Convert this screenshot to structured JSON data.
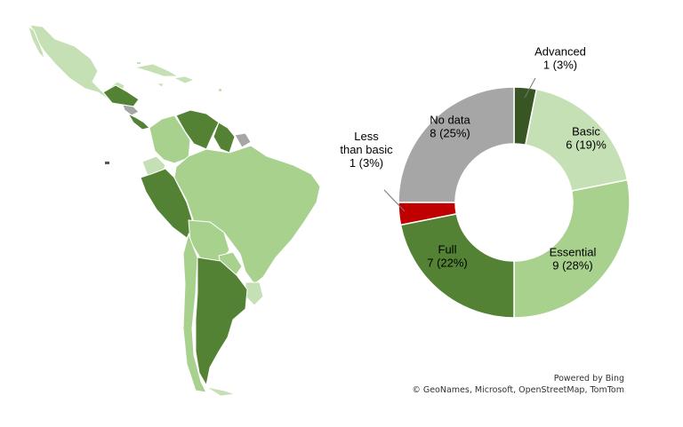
{
  "chart_data": {
    "type": "pie",
    "variant": "donut",
    "categories": [
      "Advanced",
      "Basic",
      "Essential",
      "Full",
      "Less than basic",
      "No data"
    ],
    "values": [
      1,
      6,
      9,
      7,
      1,
      8
    ],
    "label_lines": [
      [
        "Advanced",
        "1 (3%)"
      ],
      [
        "Basic",
        "6 (19)%"
      ],
      [
        "Essential",
        "9 (28%)"
      ],
      [
        "Full",
        "7 (22%)"
      ],
      [
        "Less",
        "than basic",
        "1 (3%)"
      ],
      [
        "No data",
        "8 (25%)"
      ]
    ],
    "colors": [
      "#375623",
      "#c5e0b4",
      "#a9d18e",
      "#548235",
      "#c00000",
      "#a6a6a6"
    ],
    "start_angle_deg": 0,
    "direction": "clockwise"
  },
  "map": {
    "region": "Latin America and the Caribbean",
    "legend_colors": {
      "advanced": "#375623",
      "full": "#548235",
      "essential": "#a9d18e",
      "basic": "#c5e0b4",
      "no_data": "#a6a6a6"
    }
  },
  "attribution": {
    "line1": "Powered by Bing",
    "line2": "© GeoNames, Microsoft, OpenStreetMap, TomTom"
  }
}
